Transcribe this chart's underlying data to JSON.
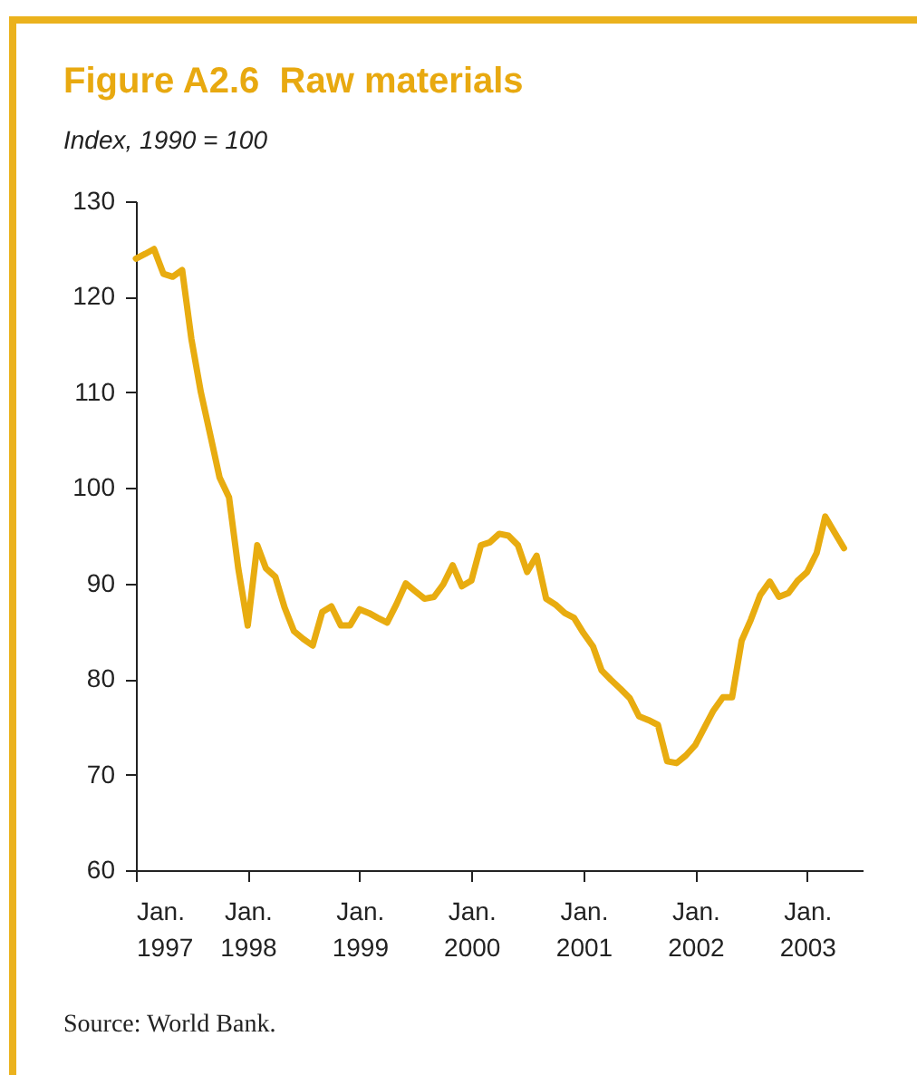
{
  "chart_data": {
    "type": "line",
    "title": "Figure A2.6  Raw materials",
    "subtitle": "Index, 1990 = 100",
    "annotations": [
      "Source: World Bank."
    ],
    "x": [
      "1997-01",
      "1997-02",
      "1997-03",
      "1997-04",
      "1997-05",
      "1997-06",
      "1997-07",
      "1997-08",
      "1997-09",
      "1997-10",
      "1997-11",
      "1997-12",
      "1998-01",
      "1998-02",
      "1998-03",
      "1998-04",
      "1998-05",
      "1998-06",
      "1998-07",
      "1998-08",
      "1998-09",
      "1998-10",
      "1998-11",
      "1998-12",
      "1999-01",
      "1999-02",
      "1999-03",
      "1999-04",
      "1999-05",
      "1999-06",
      "1999-07",
      "1999-08",
      "1999-09",
      "1999-10",
      "1999-11",
      "1999-12",
      "2000-01",
      "2000-02",
      "2000-03",
      "2000-04",
      "2000-05",
      "2000-06",
      "2000-07",
      "2000-08",
      "2000-09",
      "2000-10",
      "2000-11",
      "2000-12",
      "2001-01",
      "2001-02",
      "2001-03",
      "2001-04",
      "2001-05",
      "2001-06",
      "2001-07",
      "2001-08",
      "2001-09",
      "2001-10",
      "2001-11",
      "2001-12",
      "2002-01",
      "2002-02",
      "2002-03",
      "2002-04",
      "2002-05",
      "2002-06",
      "2002-07",
      "2002-08",
      "2002-09",
      "2002-10",
      "2002-11",
      "2002-12",
      "2003-01",
      "2003-02",
      "2003-03",
      "2003-04",
      "2003-05"
    ],
    "series": [
      {
        "color": "#e8ac10",
        "values": [
          124,
          124.5,
          125,
          122.4,
          122.1,
          122.8,
          115.6,
          110,
          105.5,
          101.1,
          99,
          91.6,
          85.6,
          94,
          91.6,
          90.7,
          87.5,
          85,
          84.2,
          83.5,
          87,
          87.6,
          85.6,
          85.6,
          87.3,
          86.9,
          86.4,
          85.9,
          87.8,
          90,
          89.2,
          88.4,
          88.6,
          89.9,
          91.9,
          89.7,
          90.3,
          94,
          94.3,
          95.2,
          95,
          94,
          91.2,
          92.9,
          88.4,
          87.8,
          86.9,
          86.4,
          84.8,
          83.4,
          80.9,
          79.9,
          79,
          78,
          76.1,
          75.7,
          75.2,
          71.4,
          71.2,
          72,
          73.1,
          75,
          76.7,
          78.1,
          78.1,
          84,
          86.2,
          88.8,
          90.2,
          88.6,
          89,
          90.3,
          91.2,
          93.2,
          97,
          95.3,
          93.7
        ]
      }
    ],
    "xlim": [
      "1997-01",
      "2003-07"
    ],
    "xticks": [
      {
        "value": "1997-01",
        "label": "Jan. 1997"
      },
      {
        "value": "1998-01",
        "label": "Jan. 1998"
      },
      {
        "value": "1999-01",
        "label": "Jan. 1999"
      },
      {
        "value": "2000-01",
        "label": "Jan. 2000"
      },
      {
        "value": "2001-01",
        "label": "Jan. 2001"
      },
      {
        "value": "2002-01",
        "label": "Jan. 2002"
      },
      {
        "value": "2003-01",
        "label": "Jan. 2003"
      }
    ],
    "ylim": [
      60,
      130
    ],
    "yticks": [
      60,
      70,
      80,
      90,
      100,
      110,
      120,
      130
    ],
    "grid": false,
    "marker": "none",
    "line_style": "solid"
  }
}
